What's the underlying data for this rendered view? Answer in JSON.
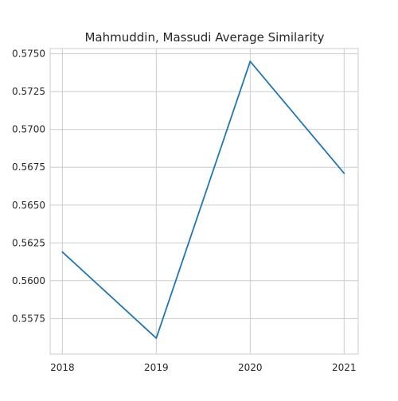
{
  "chart_data": {
    "type": "line",
    "title": "Mahmuddin, Massudi Average Similarity",
    "xlabel": "",
    "ylabel": "",
    "x": [
      2018,
      2019,
      2020,
      2021
    ],
    "x_tick_labels": [
      "2018",
      "2019",
      "2020",
      "2021"
    ],
    "y": [
      0.5619,
      0.5562,
      0.5745,
      0.5671
    ],
    "y_ticks": [
      0.5575,
      0.56,
      0.5625,
      0.565,
      0.5675,
      0.57,
      0.5725,
      0.575
    ],
    "y_tick_labels": [
      "0.5575",
      "0.5600",
      "0.5625",
      "0.5650",
      "0.5675",
      "0.5700",
      "0.5725",
      "0.5750"
    ],
    "xlim": [
      2017.87,
      2021.15
    ],
    "ylim": [
      0.55515,
      0.57535
    ],
    "grid": true,
    "series_color": "#1f77b4",
    "grid_color": "#cccccc",
    "axis_color": "#cccccc"
  }
}
